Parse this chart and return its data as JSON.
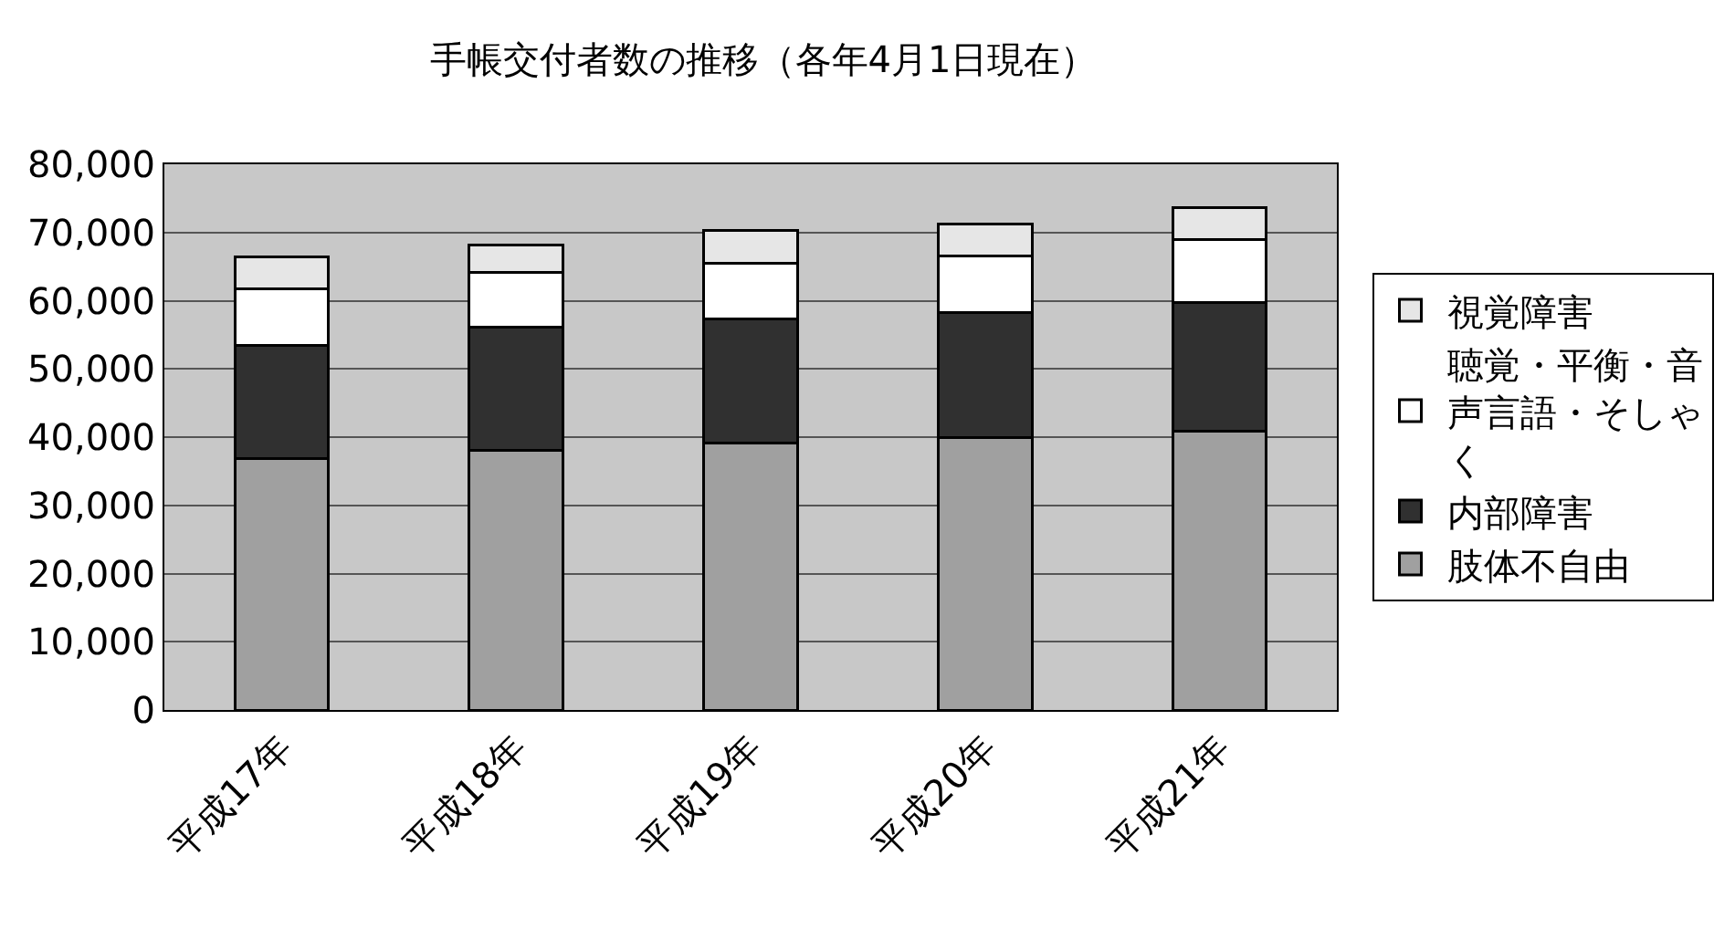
{
  "chart_data": {
    "type": "bar",
    "title": "手帳交付者数の推移（各年4月1日現在）",
    "categories": [
      "平成17年",
      "平成18年",
      "平成19年",
      "平成20年",
      "平成21年"
    ],
    "stacked": true,
    "series": [
      {
        "name": "肢体不自由",
        "color": "#a0a0a0",
        "values": [
          36900,
          38100,
          39100,
          40000,
          40900
        ]
      },
      {
        "name": "内部障害",
        "color": "#303030",
        "values": [
          16500,
          18000,
          18200,
          18300,
          18900
        ]
      },
      {
        "name": "聴覚・平衡・音声言語・そしゃく",
        "color": "#ffffff",
        "values": [
          8300,
          8100,
          8200,
          8300,
          9100
        ]
      },
      {
        "name": "視覚障害",
        "color": "#e6e6e6",
        "values": [
          4700,
          3900,
          4800,
          4700,
          4700
        ]
      }
    ],
    "ylim": [
      0,
      80000
    ],
    "yticks": [
      {
        "value": 0,
        "label": "0"
      },
      {
        "value": 10000,
        "label": "10,000"
      },
      {
        "value": 20000,
        "label": "20,000"
      },
      {
        "value": 30000,
        "label": "30,000"
      },
      {
        "value": 40000,
        "label": "40,000"
      },
      {
        "value": 50000,
        "label": "50,000"
      },
      {
        "value": 60000,
        "label": "60,000"
      },
      {
        "value": 70000,
        "label": "70,000"
      },
      {
        "value": 80000,
        "label": "80,000"
      }
    ],
    "grid": "y",
    "legend": "right"
  }
}
